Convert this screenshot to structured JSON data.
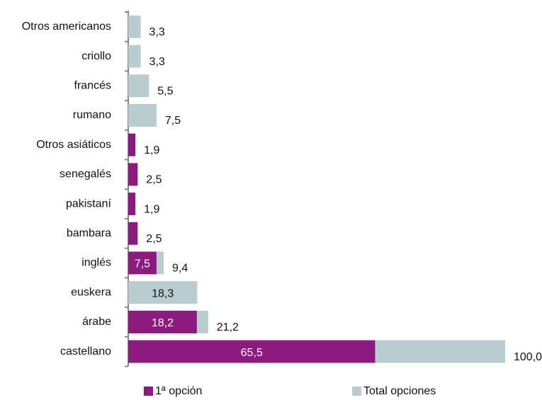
{
  "chart_data": {
    "type": "hbar_overlap",
    "categories": [
      "Otros americanos",
      "criollo",
      "francés",
      "rumano",
      "Otros asiáticos",
      "senegalés",
      "pakistaní",
      "bambara",
      "inglés",
      "euskera",
      "árabe",
      "castellano"
    ],
    "series": [
      {
        "name": "Total opciones",
        "color": "#b9ccd0",
        "values": [
          3.3,
          3.3,
          5.5,
          7.5,
          null,
          null,
          null,
          null,
          9.4,
          18.3,
          21.2,
          100.0
        ],
        "value_labels": [
          "3,3",
          "3,3",
          "5,5",
          "7,5",
          null,
          null,
          null,
          null,
          "9,4",
          "18,3",
          "21,2",
          "100,0"
        ]
      },
      {
        "name": "1ª opción",
        "color": "#8c1a7f",
        "values": [
          null,
          null,
          null,
          null,
          1.9,
          2.5,
          1.9,
          2.5,
          7.5,
          null,
          18.2,
          65.5
        ],
        "value_labels": [
          null,
          null,
          null,
          null,
          "1,9",
          "2,5",
          "1,9",
          "2,5",
          "7,5",
          null,
          "18,2",
          "65,5"
        ]
      }
    ],
    "legend": "bottom"
  }
}
